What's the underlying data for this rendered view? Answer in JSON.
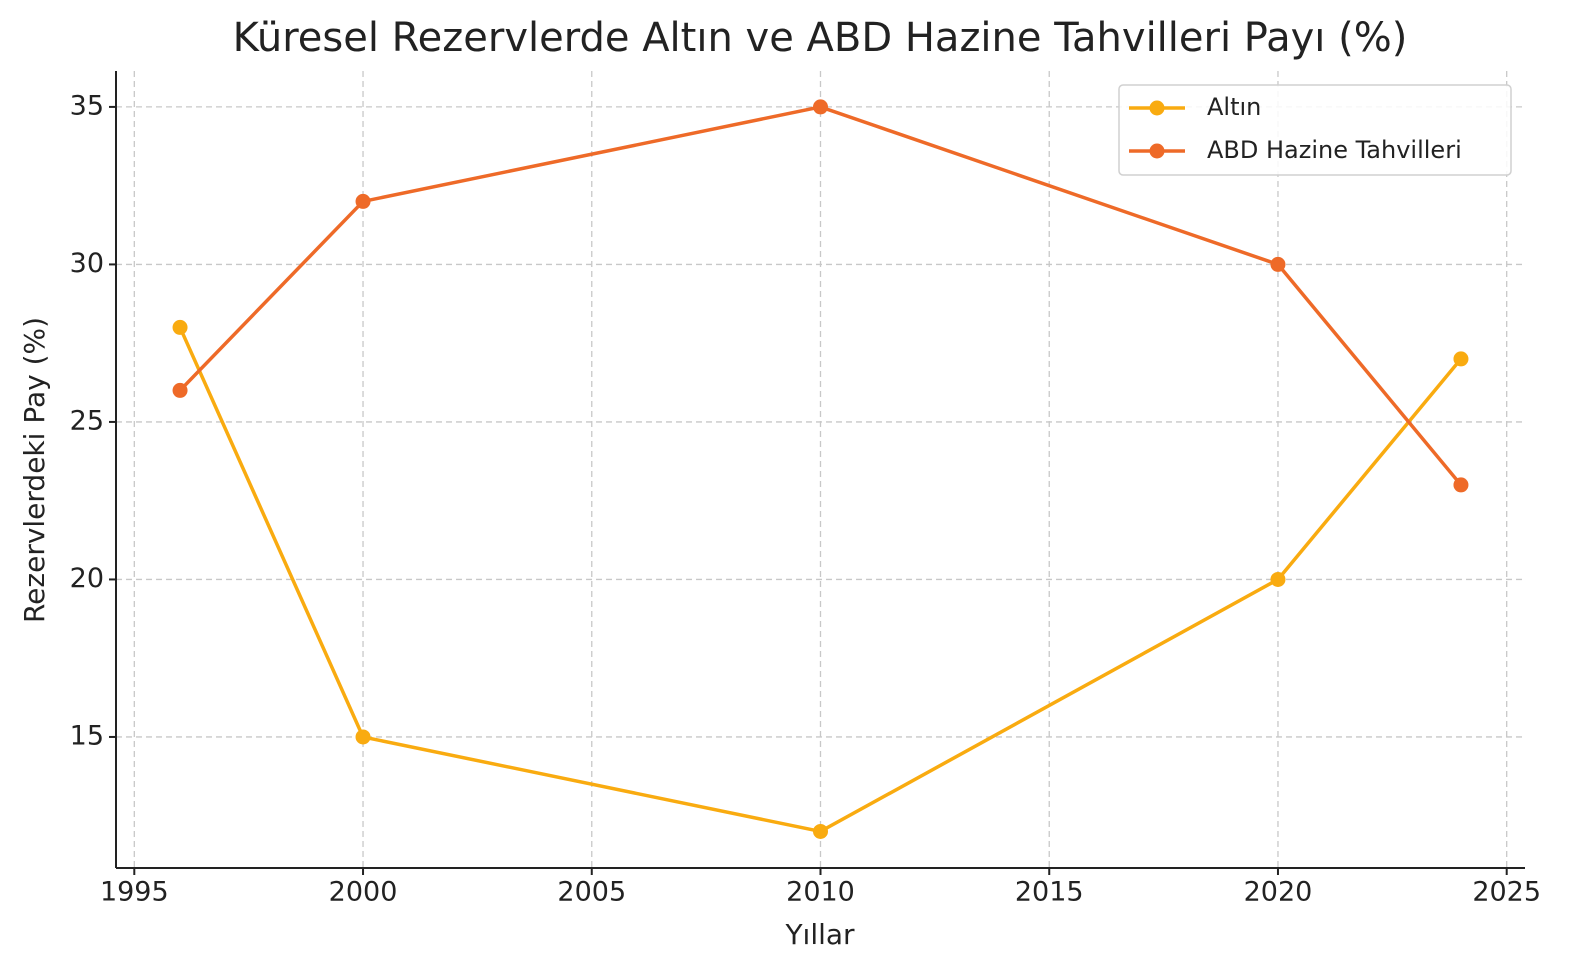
{
  "chart_data": {
    "type": "line",
    "title": "Küresel Rezervlerde Altın ve ABD Hazine Tahvilleri Payı (%)",
    "xlabel": "Yıllar",
    "ylabel": "Rezervlerdeki Pay (%)",
    "x": [
      1996,
      2000,
      2010,
      2020,
      2024
    ],
    "series": [
      {
        "name": "Altın",
        "color": "#f9ab10",
        "values": [
          28,
          15,
          12,
          20,
          27
        ]
      },
      {
        "name": "ABD Hazine Tahvilleri",
        "color": "#ee6a28",
        "values": [
          26,
          32,
          35,
          30,
          23
        ]
      }
    ],
    "xlim": [
      1994.6,
      2025.4
    ],
    "xticks": [
      1995,
      2000,
      2005,
      2010,
      2015,
      2020,
      2025
    ],
    "ylim": [
      10.84,
      36.14
    ],
    "yticks": [
      15,
      20,
      25,
      30,
      35
    ],
    "grid": true,
    "legend": "upper right"
  }
}
